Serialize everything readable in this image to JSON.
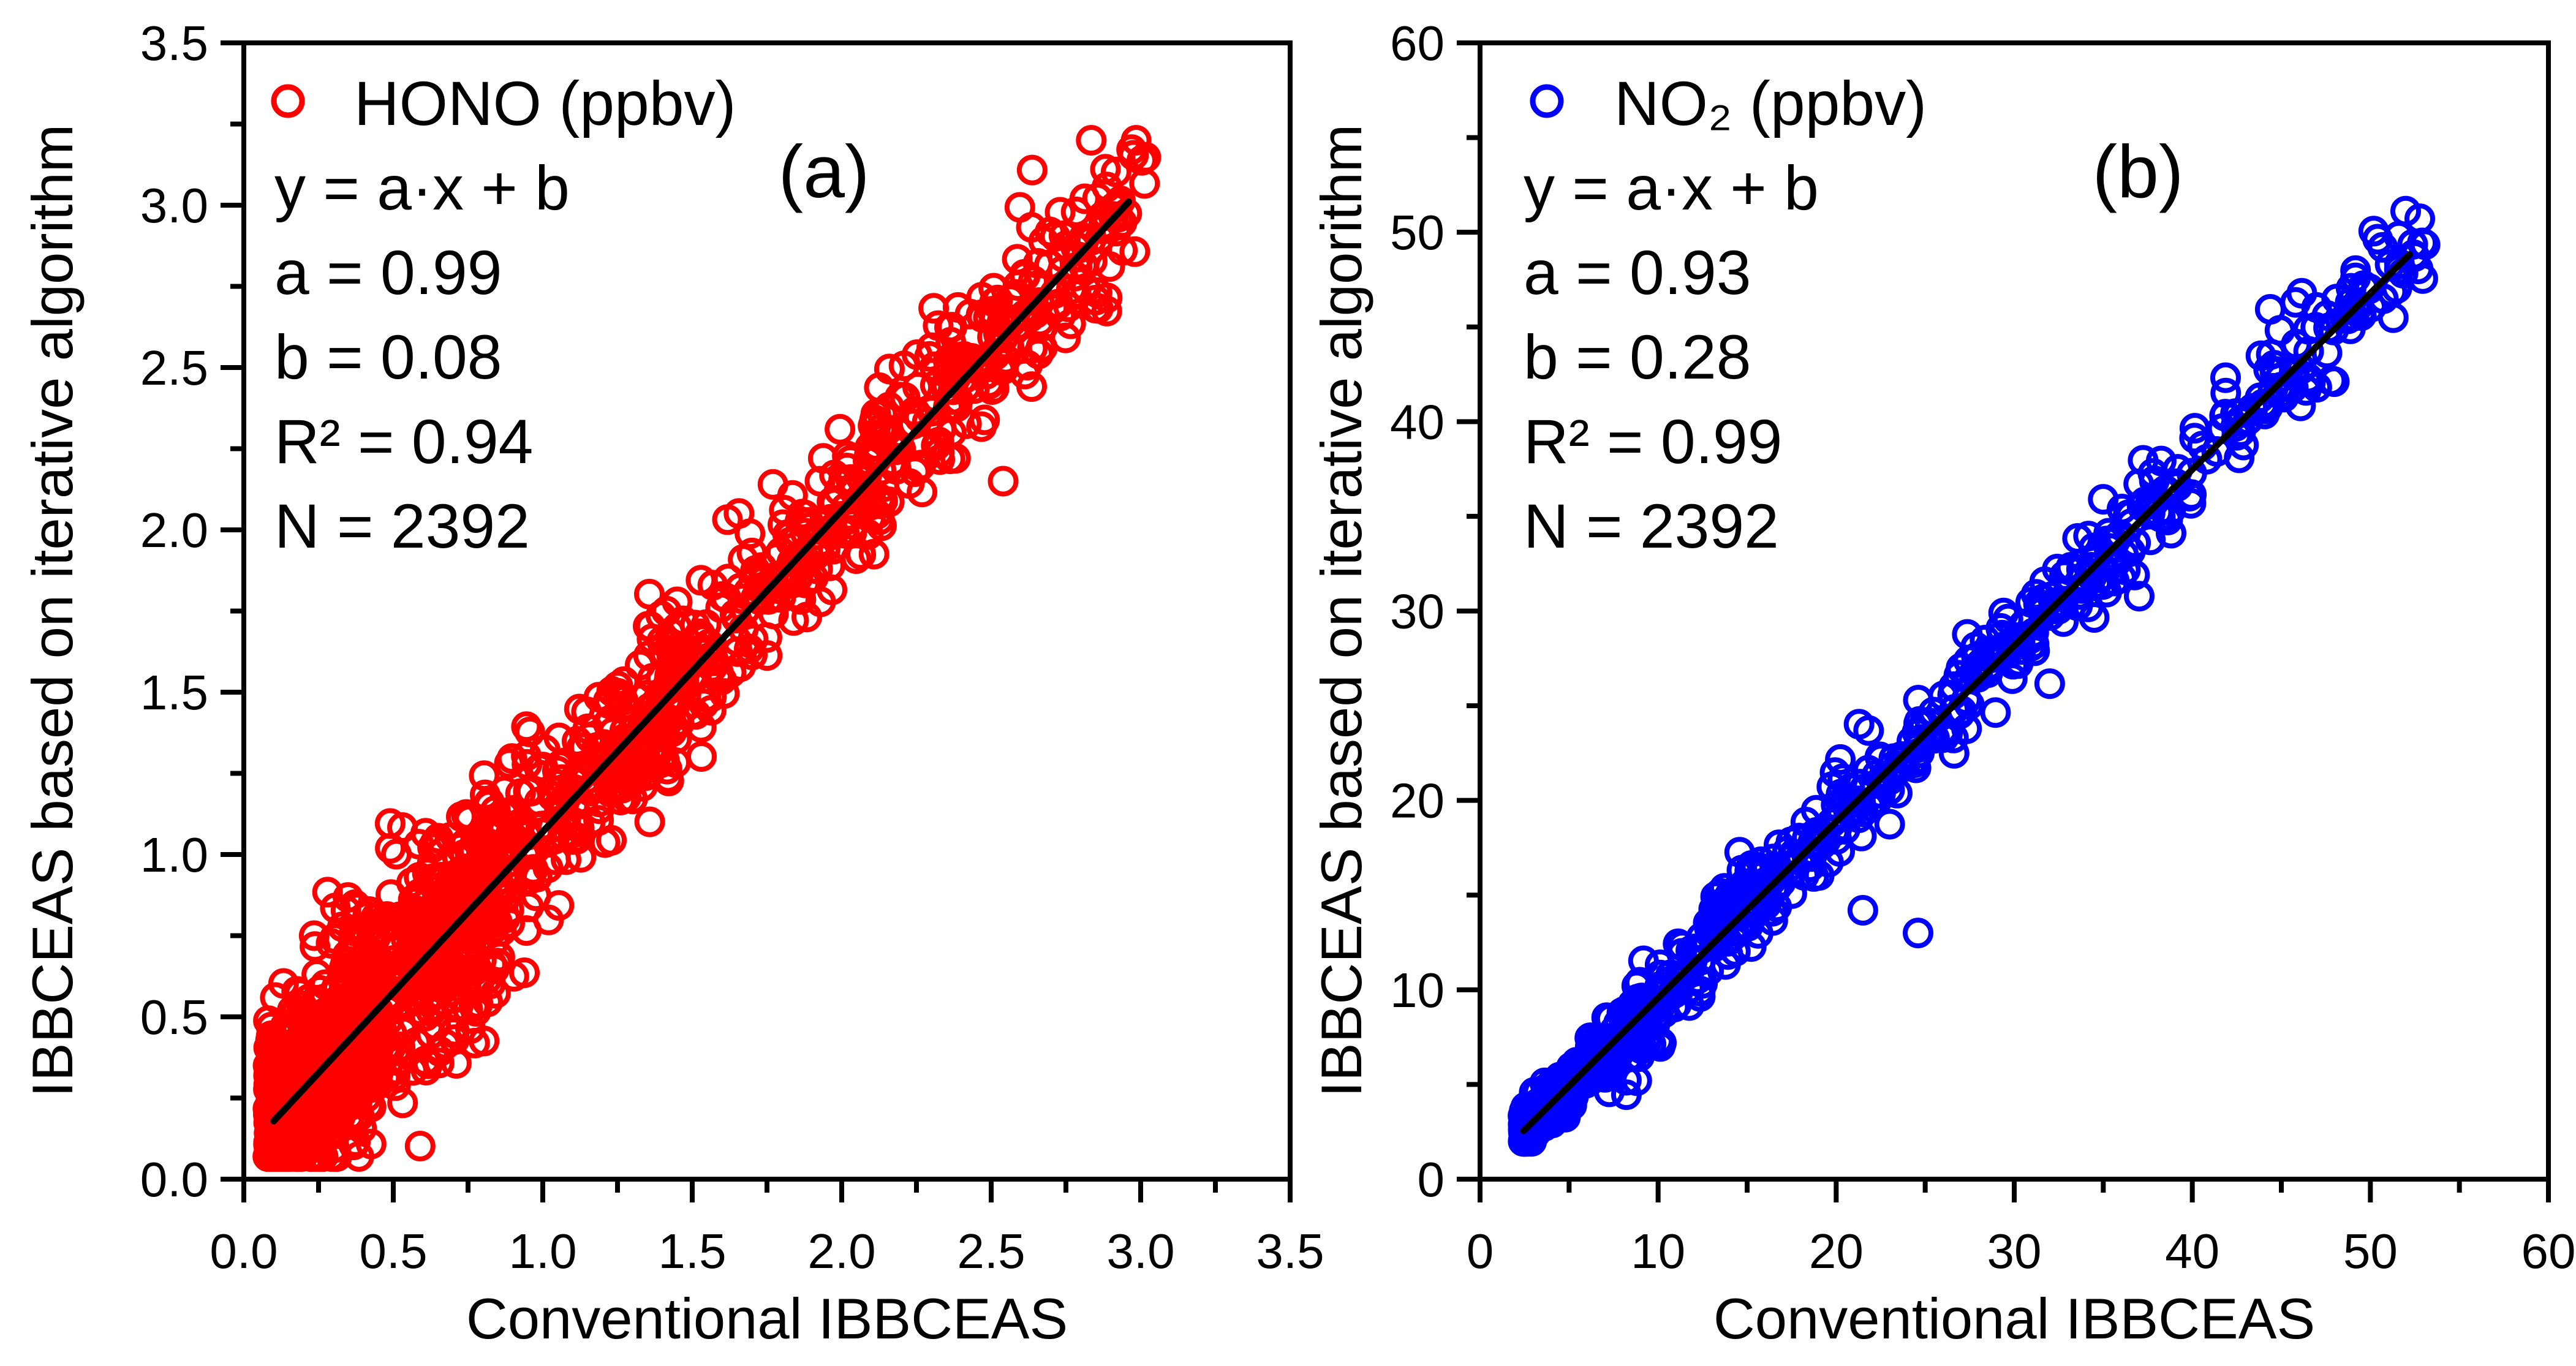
{
  "figure": {
    "background": "#ffffff",
    "text_color": "#000000"
  },
  "chart_data": [
    {
      "type": "scatter",
      "panel_tag": "(a)",
      "xlabel": "Conventional IBBCEAS",
      "ylabel": "IBBCEAS based on iterative algorithm",
      "xlim": [
        0,
        3.5
      ],
      "ylim": [
        0,
        3.5
      ],
      "grid": false,
      "legend_position": "top-left",
      "x_ticks": {
        "values": [
          0,
          0.5,
          1.0,
          1.5,
          2.0,
          2.5,
          3.0,
          3.5
        ],
        "labels": [
          "0.0",
          "0.5",
          "1.0",
          "1.5",
          "2.0",
          "2.5",
          "3.0",
          "3.5"
        ],
        "minor_between": true
      },
      "y_ticks": {
        "values": [
          0,
          0.5,
          1.0,
          1.5,
          2.0,
          2.5,
          3.0,
          3.5
        ],
        "labels": [
          "0.0",
          "0.5",
          "1.0",
          "1.5",
          "2.0",
          "2.5",
          "3.0",
          "3.5"
        ],
        "minor_between": true
      },
      "series": [
        {
          "name": "HONO (ppbv)",
          "marker": "open-circle",
          "color": "#ff0000"
        }
      ],
      "annotation_lines": [
        "y = a·x + b",
        "a = 0.99",
        "b = 0.08",
        "R² = 0.94",
        "N = 2392"
      ],
      "fit": {
        "equation": "y = a·x + b",
        "a": 0.99,
        "b": 0.08,
        "r2": 0.94,
        "n": 2392,
        "color": "#000000",
        "x_range": [
          0.1,
          2.96
        ]
      },
      "point_cloud": {
        "seed": 1234567,
        "n_render": 1500,
        "n_actual": 2392,
        "x_clusters": [
          [
            0.3,
            0.08,
            0.45,
            1.3
          ],
          [
            0.22,
            0.25,
            0.85,
            1
          ],
          [
            0.2,
            0.55,
            1.45,
            1
          ],
          [
            0.18,
            1.2,
            2.4,
            1
          ],
          [
            0.07,
            2.35,
            2.8,
            1
          ],
          [
            0.03,
            2.8,
            3.02,
            1
          ]
        ],
        "sd_low": 0.185,
        "sd_high": 0.125,
        "sd_switch_x": 1.0,
        "y_clamp": [
          0.07,
          3.2
        ],
        "outliers": [
          [
            1.77,
            2.14
          ],
          [
            2.54,
            2.15
          ]
        ]
      }
    },
    {
      "type": "scatter",
      "panel_tag": "(b)",
      "xlabel": "Conventional IBBCEAS",
      "ylabel": "IBBCEAS based on iterative algorithm",
      "xlim": [
        0,
        60
      ],
      "ylim": [
        0,
        60
      ],
      "grid": false,
      "legend_position": "top-left",
      "x_ticks": {
        "values": [
          0,
          10,
          20,
          30,
          40,
          50,
          60
        ],
        "labels": [
          "0",
          "10",
          "20",
          "30",
          "40",
          "50",
          "60"
        ],
        "minor_between": true
      },
      "y_ticks": {
        "values": [
          0,
          10,
          20,
          30,
          40,
          50,
          60
        ],
        "labels": [
          "0",
          "10",
          "20",
          "30",
          "40",
          "50",
          "60"
        ],
        "minor_between": true
      },
      "series": [
        {
          "name": "NO₂ (ppbv)",
          "marker": "open-circle",
          "color": "#0000ff"
        }
      ],
      "annotation_lines": [
        "y = a·x + b",
        "a = 0.93",
        "b = 0.28",
        "R² = 0.99",
        "N = 2392"
      ],
      "fit": {
        "equation": "y = a·x + b",
        "a": 0.93,
        "b": 0.28,
        "r2": 0.99,
        "n": 2392,
        "color": "#000000",
        "x_range": [
          2.45,
          52.2
        ]
      },
      "point_cloud": {
        "seed": 424242,
        "n_render": 820,
        "n_actual": 2392,
        "x_clusters": [
          [
            0.3,
            2.4,
            5.5,
            1.4
          ],
          [
            0.14,
            5.5,
            10,
            1
          ],
          [
            0.14,
            10,
            17,
            1
          ],
          [
            0.12,
            17,
            27,
            1
          ],
          [
            0.16,
            27,
            41,
            1
          ],
          [
            0.1,
            41,
            49,
            1
          ],
          [
            0.04,
            49,
            53.2,
            1
          ]
        ],
        "sd_low": 0.55,
        "sd_high": 1.25,
        "sd_switch_x": 7,
        "y_clamp": [
          2.0,
          58
        ],
        "outliers": [
          [
            8.8,
            5.2
          ],
          [
            21.5,
            14.2
          ],
          [
            24.6,
            13.0
          ],
          [
            35.0,
            35.9
          ],
          [
            45.8,
            46.3
          ]
        ]
      }
    }
  ]
}
